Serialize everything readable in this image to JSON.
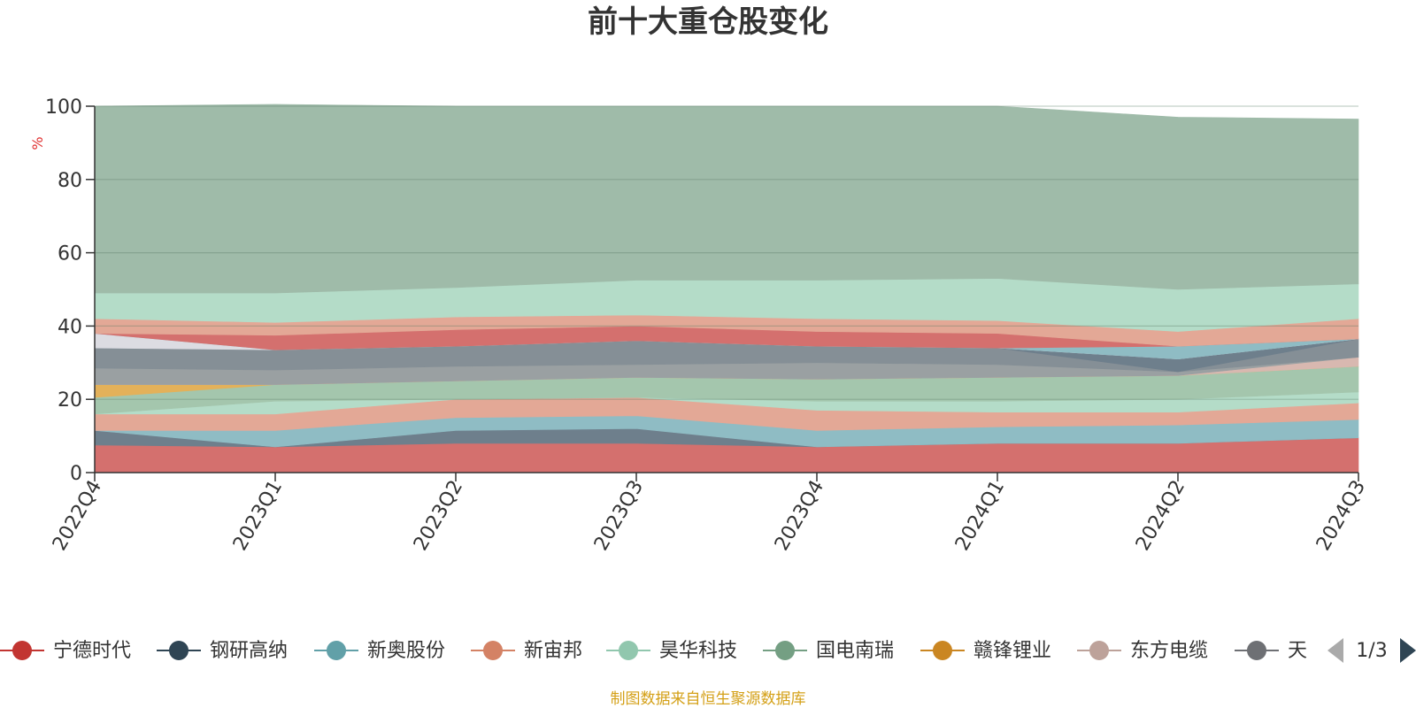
{
  "chart_data": {
    "type": "area",
    "stacked": true,
    "normalized_percent": true,
    "title": "前十大重仓股变化",
    "ylabel": "%",
    "ylim": [
      0,
      100
    ],
    "yticks": [
      "0",
      "20",
      "40",
      "60",
      "80",
      "100"
    ],
    "categories": [
      "2022Q4",
      "2023Q1",
      "2023Q2",
      "2023Q3",
      "2023Q4",
      "2024Q1",
      "2024Q2",
      "2024Q3"
    ],
    "grid": true,
    "legend_position": "bottom",
    "layers": [
      {
        "color": "#d4706e",
        "values": [
          7.5,
          7.0,
          8.0,
          8.0,
          7.0,
          8.0,
          8.0,
          9.5
        ]
      },
      {
        "color": "#6e7f8c",
        "values": [
          4.0,
          0.0,
          3.5,
          4.0,
          0.0,
          0.0,
          0.0,
          0.0
        ]
      },
      {
        "color": "#8fbcc4",
        "values": [
          0.0,
          4.5,
          3.5,
          3.5,
          4.5,
          4.5,
          5.0,
          5.0
        ]
      },
      {
        "color": "#e3a896",
        "values": [
          4.5,
          4.5,
          5.0,
          5.0,
          5.5,
          4.0,
          3.5,
          4.5
        ]
      },
      {
        "color": "#b4dcc8",
        "values": [
          0.0,
          3.5,
          0.0,
          0.0,
          2.5,
          3.0,
          3.5,
          3.0
        ]
      },
      {
        "color": "#a4c6ad",
        "values": [
          4.5,
          4.5,
          5.0,
          5.5,
          6.0,
          6.5,
          6.5,
          7.0
        ]
      },
      {
        "color": "#e3b15a",
        "values": [
          3.5,
          0.0,
          0.0,
          0.0,
          0.0,
          0.0,
          0.0,
          0.0
        ]
      },
      {
        "color": "#d8b8b0",
        "values": [
          0.0,
          0.0,
          0.0,
          0.0,
          0.0,
          0.0,
          0.0,
          2.5
        ]
      },
      {
        "color": "#9aa0a2",
        "values": [
          4.5,
          4.0,
          4.0,
          3.5,
          4.5,
          3.5,
          1.0,
          0.0
        ]
      },
      {
        "color": "#858f96",
        "values": [
          5.5,
          5.5,
          5.5,
          6.5,
          4.5,
          4.5,
          0.0,
          5.0
        ]
      },
      {
        "color": "#6e7f8c",
        "values": [
          0.0,
          0.0,
          0.0,
          0.0,
          0.0,
          0.0,
          3.5,
          0.0
        ]
      },
      {
        "color": "#dcdce2",
        "values": [
          4.0,
          0.0,
          0.0,
          0.0,
          0.0,
          0.0,
          0.0,
          0.0
        ]
      },
      {
        "color": "#8fbcc4",
        "values": [
          0.0,
          0.0,
          0.0,
          0.0,
          0.0,
          0.0,
          3.5,
          0.0
        ]
      },
      {
        "color": "#d4706e",
        "values": [
          0.0,
          4.0,
          4.5,
          4.0,
          4.0,
          4.0,
          0.0,
          0.0
        ]
      },
      {
        "color": "#e3a896",
        "values": [
          4.0,
          3.5,
          3.5,
          3.0,
          3.5,
          3.5,
          4.0,
          5.5
        ]
      },
      {
        "color": "#b4dcc8",
        "values": [
          7.0,
          8.0,
          8.0,
          9.5,
          10.5,
          11.5,
          11.5,
          9.5
        ]
      },
      {
        "color": "#9fbba9",
        "values": [
          51.0,
          51.5,
          49.5,
          47.5,
          47.5,
          47.0,
          47.0,
          45.0
        ]
      }
    ],
    "legend": [
      {
        "name": "宁德时代",
        "color": "#c23531"
      },
      {
        "name": "钢研高纳",
        "color": "#2f4554"
      },
      {
        "name": "新奥股份",
        "color": "#61a0a8"
      },
      {
        "name": "新宙邦",
        "color": "#d48265"
      },
      {
        "name": "昊华科技",
        "color": "#91c7ae"
      },
      {
        "name": "国电南瑞",
        "color": "#749f83"
      },
      {
        "name": "赣锋锂业",
        "color": "#ca8622"
      },
      {
        "name": "东方电缆",
        "color": "#bda29a"
      },
      {
        "name": "天",
        "color": "#6e7074"
      }
    ]
  },
  "legend_pager": {
    "text": "1/3"
  },
  "footer": {
    "text": "制图数据来自恒生聚源数据库"
  }
}
